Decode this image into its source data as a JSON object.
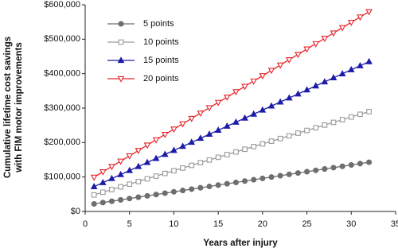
{
  "chart_data": {
    "type": "line",
    "xlabel": "Years after injury",
    "ylabel": [
      "Cumulative lifetime cost savings",
      "with FIM motor improvements"
    ],
    "x": [
      1,
      2,
      3,
      4,
      5,
      6,
      7,
      8,
      9,
      10,
      11,
      12,
      13,
      14,
      15,
      16,
      17,
      18,
      19,
      20,
      21,
      22,
      23,
      24,
      25,
      26,
      27,
      28,
      29,
      30,
      31,
      32
    ],
    "series": [
      {
        "name": "5 points",
        "color": "#6e6e6e",
        "marker": "circle",
        "filled": true,
        "values": [
          21900,
          25800,
          29700,
          33600,
          37500,
          41400,
          45300,
          49200,
          53100,
          57000,
          60900,
          64800,
          68700,
          72600,
          76500,
          80400,
          84300,
          88200,
          92100,
          96000,
          99900,
          103800,
          107700,
          111600,
          115500,
          119400,
          123300,
          127200,
          131100,
          135000,
          138900,
          142800
        ]
      },
      {
        "name": "10 points",
        "color": "#9a9a9a",
        "marker": "square",
        "filled": false,
        "values": [
          48000,
          55800,
          63600,
          71400,
          79200,
          87000,
          94800,
          102600,
          110400,
          118200,
          126000,
          133800,
          141600,
          149400,
          157200,
          165000,
          172800,
          180600,
          188400,
          196200,
          204000,
          211800,
          219600,
          227400,
          235200,
          243000,
          250800,
          258600,
          266400,
          274200,
          282000,
          289800
        ]
      },
      {
        "name": "15 points",
        "color": "#1c1ca8",
        "marker": "triangle",
        "filled": true,
        "values": [
          72000,
          83700,
          95400,
          107100,
          118800,
          130500,
          142200,
          153900,
          165600,
          177300,
          189000,
          200700,
          212400,
          224100,
          235800,
          247500,
          259200,
          270900,
          282600,
          294300,
          306000,
          317700,
          329400,
          341100,
          352800,
          364500,
          376200,
          387900,
          399600,
          411300,
          423000,
          434700
        ]
      },
      {
        "name": "20 points",
        "color": "#e8242a",
        "marker": "triangle-down",
        "filled": false,
        "values": [
          99500,
          115000,
          130500,
          146000,
          161500,
          177000,
          192500,
          208000,
          223500,
          239000,
          254500,
          270000,
          285500,
          301000,
          316500,
          332000,
          347500,
          363000,
          378500,
          394000,
          409500,
          425000,
          440500,
          456000,
          471500,
          487000,
          502500,
          518000,
          533500,
          549000,
          564500,
          580000
        ]
      }
    ],
    "xlim": [
      0,
      35
    ],
    "xticks": [
      0,
      5,
      10,
      15,
      20,
      25,
      30,
      35
    ],
    "ylim": [
      0,
      600000
    ],
    "yticks": [
      {
        "value": 0,
        "label": "$0"
      },
      {
        "value": 100000,
        "label": "$100,000"
      },
      {
        "value": 200000,
        "label": "$200,000"
      },
      {
        "value": 300000,
        "label": "$300,000"
      },
      {
        "value": 400000,
        "label": "$400,000"
      },
      {
        "value": 500000,
        "label": "$500,000"
      },
      {
        "value": 600000,
        "label": "$600,000"
      }
    ],
    "grid": false,
    "legend": "upper-left"
  }
}
